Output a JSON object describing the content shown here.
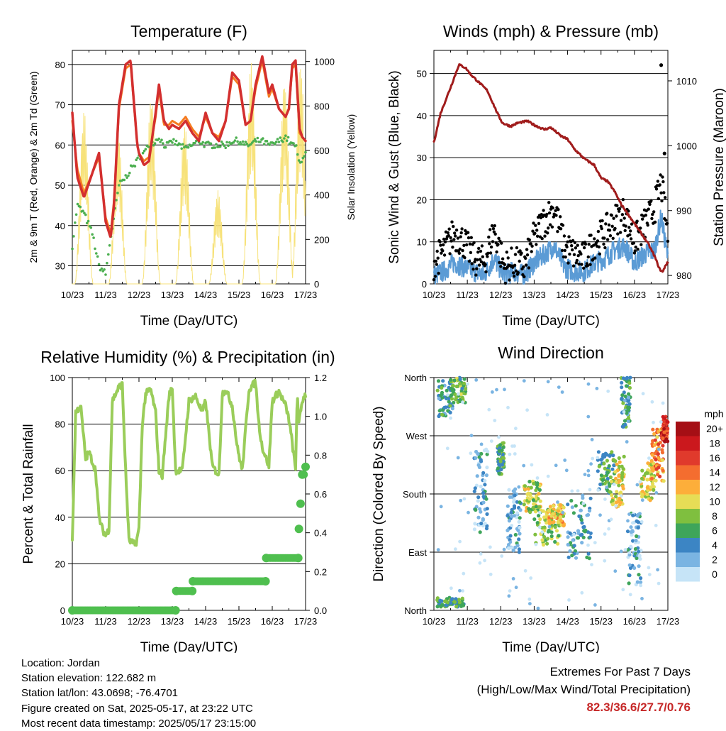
{
  "day_ticks": [
    "10/23",
    "11/23",
    "12/23",
    "13/23",
    "14/23",
    "15/23",
    "16/23",
    "17/23"
  ],
  "x_axis_label": "Time (Day/UTC)",
  "colors": {
    "temp_2m": "#d32f2f",
    "temp_9m": "#f57c20",
    "dewpoint": "#4caf50",
    "solar": "#f7e27a",
    "wind": "#5b9bd5",
    "gust": "#000000",
    "pressure": "#a01c1c",
    "rh": "#9acd5a",
    "precip": "#4fbf4f"
  },
  "panels": {
    "temperature": {
      "title": "Temperature (F)",
      "ylabel_left": "2m & 9m T (Red, Orange) & 2m Td (Green)",
      "ylabel_right": "Solar Insolation (Yellow)",
      "yticks_left": [
        "30",
        "40",
        "50",
        "60",
        "70",
        "80"
      ],
      "yticks_right": [
        "0",
        "200",
        "400",
        "600",
        "800",
        "1000"
      ]
    },
    "winds": {
      "title": "Winds (mph) & Pressure (mb)",
      "ylabel_left": "Sonic Wind & Gust (Blue, Black)",
      "ylabel_right": "Station Pressure (Maroon)",
      "yticks_left": [
        "0",
        "10",
        "20",
        "30",
        "40",
        "50"
      ],
      "yticks_right": [
        "980",
        "990",
        "1000",
        "1010"
      ]
    },
    "humidity": {
      "title": "Relative Humidity (%) & Precipitation (in)",
      "ylabel_left": "Percent & Total Rainfall",
      "yticks_left": [
        "0",
        "20",
        "40",
        "60",
        "80",
        "100"
      ],
      "yticks_right": [
        "0.0",
        "0.2",
        "0.4",
        "0.6",
        "0.8",
        "1.0",
        "1.2"
      ]
    },
    "direction": {
      "title": "Wind Direction",
      "ylabel_left": "Direction (Colored By Speed)",
      "yticks_left": [
        "North",
        "East",
        "South",
        "West",
        "North"
      ],
      "legend_title": "mph",
      "legend_labels": [
        "20+",
        "18",
        "16",
        "14",
        "12",
        "10",
        "8",
        "6",
        "4",
        "2",
        "0"
      ],
      "legend_colors": [
        "#a50f15",
        "#cb181d",
        "#e03a2c",
        "#f46d2f",
        "#fdae3a",
        "#e6dd56",
        "#7fbf3f",
        "#3ea55a",
        "#3c85c4",
        "#7ab4e2",
        "#c6e4f7"
      ]
    }
  },
  "chart_data": [
    {
      "type": "line",
      "title": "Temperature (F)",
      "xlabel": "Time (Day/UTC)",
      "ylabel": "2m & 9m T (Red, Orange) & 2m Td (Green)",
      "y2label": "Solar Insolation (Yellow)",
      "xlim": [
        0,
        7
      ],
      "ylim": [
        25.5,
        83.5
      ],
      "y2lim": [
        0,
        1050
      ],
      "x": [
        0.0,
        0.15,
        0.35,
        0.6,
        0.8,
        1.0,
        1.15,
        1.25,
        1.4,
        1.6,
        1.75,
        1.95,
        2.0,
        2.15,
        2.3,
        2.5,
        2.6,
        2.75,
        2.9,
        3.0,
        3.2,
        3.4,
        3.6,
        3.8,
        4.0,
        4.2,
        4.4,
        4.6,
        4.8,
        5.0,
        5.2,
        5.35,
        5.5,
        5.7,
        5.9,
        6.0,
        6.2,
        6.4,
        6.5,
        6.6,
        6.7,
        6.82,
        6.9,
        7.0
      ],
      "series": [
        {
          "name": "2m T",
          "values": [
            68,
            52,
            47,
            53,
            58,
            41,
            37,
            45,
            70,
            80,
            81,
            60,
            58,
            55,
            56,
            68,
            75,
            66,
            64,
            65,
            64,
            66,
            63,
            61,
            68,
            63,
            61,
            66,
            78,
            76,
            65,
            66,
            75,
            82,
            73,
            75,
            69,
            67,
            69,
            80,
            81,
            64,
            62,
            61
          ]
        },
        {
          "name": "9m T",
          "values": [
            66,
            54,
            48,
            53,
            57,
            42,
            38,
            46,
            69,
            79,
            80,
            60,
            58,
            56,
            57,
            67,
            74,
            65,
            65,
            66,
            65,
            67,
            64,
            62,
            67,
            63,
            62,
            66,
            77,
            75,
            65,
            66,
            74,
            81,
            72,
            74,
            69,
            67,
            69,
            79,
            80,
            63,
            62,
            61
          ]
        },
        {
          "name": "2m Td",
          "values": [
            35,
            45,
            43,
            38,
            30,
            28,
            37,
            42,
            50,
            52,
            54,
            56,
            57,
            58,
            60,
            61,
            62,
            60,
            60,
            61,
            60,
            59,
            60,
            61,
            60,
            60,
            60,
            60,
            61,
            61,
            60,
            60,
            61,
            61,
            60,
            60,
            61,
            62,
            61,
            60,
            60,
            55,
            57,
            58
          ]
        }
      ],
      "solar": {
        "peak_x": [
          0.35,
          1.37,
          2.37,
          3.37,
          4.37,
          5.37,
          6.37,
          6.85
        ],
        "peak_y": [
          780,
          700,
          850,
          720,
          420,
          1000,
          920,
          1000
        ]
      }
    },
    {
      "type": "line",
      "title": "Winds (mph) & Pressure (mb)",
      "xlabel": "Time (Day/UTC)",
      "ylabel": "Sonic Wind & Gust (Blue, Black)",
      "y2label": "Station Pressure (Maroon)",
      "xlim": [
        0,
        7
      ],
      "ylim": [
        0,
        55.5
      ],
      "y2lim": [
        978.7,
        1014.7
      ],
      "pressure": {
        "x": [
          0.0,
          0.2,
          0.5,
          0.75,
          0.95,
          1.1,
          1.4,
          1.6,
          1.9,
          2.05,
          2.3,
          2.5,
          2.8,
          3.0,
          3.3,
          3.5,
          3.8,
          4.0,
          4.2,
          4.5,
          4.8,
          5.0,
          5.2,
          5.4,
          5.6,
          5.8,
          6.0,
          6.2,
          6.4,
          6.6,
          6.75,
          6.85,
          6.92,
          7.0
        ],
        "values": [
          1000.5,
          1005,
          1009,
          1012.5,
          1012,
          1011,
          1009.5,
          1008.5,
          1005,
          1003.5,
          1003,
          1003.5,
          1003.8,
          1003.2,
          1002.5,
          1002.8,
          1001.5,
          1001,
          999.5,
          998,
          997,
          995,
          994.5,
          993,
          991,
          989.5,
          988,
          986.5,
          985,
          983,
          981,
          980.5,
          981.5,
          982
        ]
      },
      "wind": {
        "x": [
          0.0,
          0.3,
          0.6,
          0.9,
          1.2,
          1.5,
          1.8,
          2.1,
          2.4,
          2.7,
          3.0,
          3.3,
          3.6,
          3.9,
          4.2,
          4.5,
          4.8,
          5.1,
          5.4,
          5.7,
          6.0,
          6.3,
          6.6,
          6.8,
          7.0
        ],
        "values": [
          2,
          3,
          5,
          4,
          3,
          2,
          6,
          2,
          3,
          2,
          5,
          7,
          9,
          4,
          3,
          3,
          5,
          6,
          8,
          9,
          5,
          7,
          8,
          16,
          6
        ]
      },
      "gust": {
        "x": [
          0.0,
          0.3,
          0.6,
          0.9,
          1.2,
          1.5,
          1.8,
          2.1,
          2.4,
          2.7,
          3.0,
          3.3,
          3.6,
          3.9,
          4.2,
          4.5,
          4.8,
          5.1,
          5.4,
          5.7,
          6.0,
          6.3,
          6.6,
          6.8,
          7.0
        ],
        "values": [
          5,
          8,
          12,
          10,
          6,
          5,
          13,
          4,
          5,
          4,
          11,
          15,
          18,
          9,
          7,
          6,
          10,
          12,
          15,
          17,
          10,
          14,
          18,
          24,
          12
        ]
      },
      "gust_outliers": [
        {
          "x": 6.8,
          "y": 52
        },
        {
          "x": 6.9,
          "y": 31
        }
      ]
    },
    {
      "type": "line",
      "title": "Relative Humidity (%) & Precipitation (in)",
      "xlabel": "Time (Day/UTC)",
      "ylabel": "Percent & Total Rainfall",
      "xlim": [
        0,
        7
      ],
      "ylim": [
        0,
        100
      ],
      "y2lim": [
        0,
        1.2
      ],
      "rh": {
        "x": [
          0.0,
          0.1,
          0.25,
          0.4,
          0.5,
          0.7,
          0.8,
          0.9,
          1.0,
          1.1,
          1.2,
          1.4,
          1.5,
          1.6,
          1.7,
          1.9,
          2.0,
          2.1,
          2.2,
          2.35,
          2.5,
          2.6,
          2.7,
          2.9,
          3.0,
          3.1,
          3.3,
          3.5,
          3.7,
          3.9,
          4.0,
          4.2,
          4.4,
          4.5,
          4.6,
          4.8,
          4.95,
          5.1,
          5.3,
          5.5,
          5.6,
          5.7,
          5.9,
          6.0,
          6.2,
          6.4,
          6.5,
          6.6,
          6.7,
          6.75,
          6.8,
          6.9,
          7.0
        ],
        "values": [
          30,
          85,
          88,
          65,
          68,
          60,
          40,
          35,
          32,
          35,
          90,
          96,
          97,
          60,
          30,
          28,
          35,
          80,
          93,
          95,
          85,
          60,
          58,
          92,
          96,
          60,
          60,
          90,
          92,
          85,
          90,
          62,
          58,
          93,
          95,
          88,
          70,
          60,
          95,
          98,
          80,
          70,
          62,
          90,
          94,
          88,
          82,
          72,
          60,
          94,
          80,
          90,
          93
        ]
      },
      "precip": {
        "x": [
          0.0,
          3.1,
          3.12,
          3.6,
          3.62,
          5.8,
          5.82,
          6.78,
          6.8,
          6.85,
          6.9,
          7.0
        ],
        "values": [
          0.0,
          0.0,
          0.1,
          0.1,
          0.15,
          0.15,
          0.27,
          0.27,
          0.42,
          0.55,
          0.7,
          0.74
        ]
      }
    },
    {
      "type": "scatter",
      "title": "Wind Direction",
      "xlabel": "Time (Day/UTC)",
      "ylabel": "Direction (Colored By Speed)",
      "xlim": [
        0,
        7
      ],
      "ylim": [
        0,
        360
      ],
      "yticklabels": [
        "North",
        "East",
        "South",
        "West",
        "North"
      ],
      "color_scale": {
        "title": "mph",
        "levels": [
          "0",
          "2",
          "4",
          "6",
          "8",
          "10",
          "12",
          "14",
          "16",
          "18",
          "20+"
        ]
      },
      "clusters": [
        {
          "x0": 0.1,
          "x1": 0.6,
          "d0": 300,
          "d1": 355,
          "spd": 5
        },
        {
          "x0": 0.5,
          "x1": 0.95,
          "d0": 320,
          "d1": 360,
          "spd": 7
        },
        {
          "x0": 0.1,
          "x1": 0.9,
          "d0": 5,
          "d1": 20,
          "spd": 6
        },
        {
          "x0": 1.2,
          "x1": 1.6,
          "d0": 120,
          "d1": 250,
          "spd": 3
        },
        {
          "x0": 1.9,
          "x1": 2.1,
          "d0": 210,
          "d1": 260,
          "spd": 6
        },
        {
          "x0": 2.2,
          "x1": 2.6,
          "d0": 90,
          "d1": 190,
          "spd": 3
        },
        {
          "x0": 2.7,
          "x1": 3.2,
          "d0": 150,
          "d1": 200,
          "spd": 9
        },
        {
          "x0": 3.0,
          "x1": 3.8,
          "d0": 100,
          "d1": 160,
          "spd": 8
        },
        {
          "x0": 3.4,
          "x1": 3.9,
          "d0": 130,
          "d1": 165,
          "spd": 11
        },
        {
          "x0": 4.0,
          "x1": 4.7,
          "d0": 80,
          "d1": 180,
          "spd": 4
        },
        {
          "x0": 4.9,
          "x1": 5.4,
          "d0": 180,
          "d1": 245,
          "spd": 6
        },
        {
          "x0": 5.3,
          "x1": 5.7,
          "d0": 160,
          "d1": 240,
          "spd": 10
        },
        {
          "x0": 5.6,
          "x1": 5.9,
          "d0": 280,
          "d1": 360,
          "spd": 5
        },
        {
          "x0": 5.8,
          "x1": 6.2,
          "d0": 40,
          "d1": 150,
          "spd": 3
        },
        {
          "x0": 6.2,
          "x1": 6.6,
          "d0": 170,
          "d1": 230,
          "spd": 10
        },
        {
          "x0": 6.5,
          "x1": 6.9,
          "d0": 200,
          "d1": 280,
          "spd": 13
        },
        {
          "x0": 6.8,
          "x1": 7.0,
          "d0": 260,
          "d1": 300,
          "spd": 17
        }
      ]
    }
  ],
  "footer": {
    "location": "Location: Jordan",
    "elevation": "Station elevation: 122.682 m",
    "latlon": "Station lat/lon: 43.0698; -76.4701",
    "created": "Figure created on Sat, 2025-05-17, at 23:22 UTC",
    "recent": "Most recent data timestamp: 2025/05/17 23:15:00"
  },
  "extremes": {
    "title": "Extremes For Past 7 Days",
    "subtitle": "(High/Low/Max Wind/Total Precipitation)",
    "values": "82.3/36.6/27.7/0.76"
  }
}
